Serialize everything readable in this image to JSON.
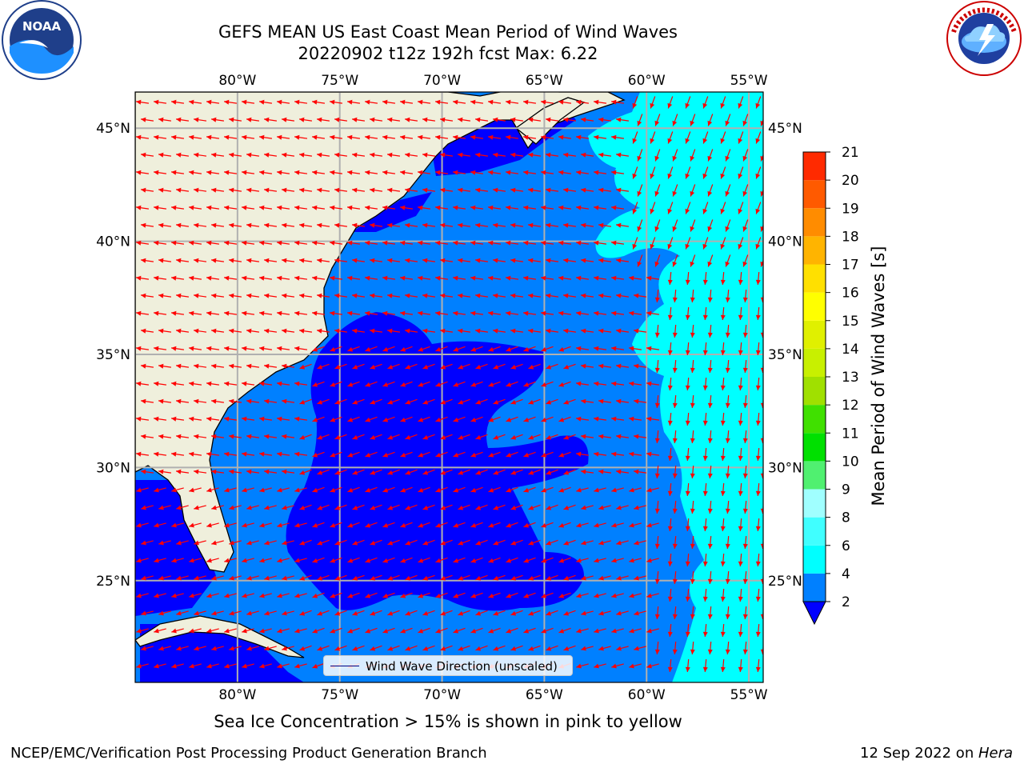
{
  "title": {
    "line1": "GEFS MEAN US East Coast Mean Period of Wind Waves",
    "line2": "20220902 t12z 192h fcst   Max: 6.22"
  },
  "logos": {
    "left": {
      "name": "noaa-logo",
      "text": "NOAA",
      "ring_text": "NATIONAL OCEANIC AND ATMOSPHERIC ADMINISTRATION · U.S. DEPARTMENT OF COMMERCE"
    },
    "right": {
      "name": "nws-logo",
      "ring_text": "NATIONAL WEATHER SERVICE"
    }
  },
  "map": {
    "lon_ticks": [
      "80°W",
      "75°W",
      "70°W",
      "65°W",
      "60°W",
      "55°W"
    ],
    "lat_ticks": [
      "45°N",
      "40°N",
      "35°N",
      "30°N",
      "25°N"
    ],
    "lon_values": [
      -80,
      -75,
      -70,
      -65,
      -60,
      -55
    ],
    "lat_values": [
      45,
      40,
      35,
      30,
      25
    ],
    "extent": {
      "lon_min": -85,
      "lon_max": -54.3,
      "lat_min": 20.5,
      "lat_max": 46.6
    },
    "grid": true,
    "colors": {
      "land": "#efefdc",
      "ocean_2_4": "#0080ff",
      "ocean_below_2": "#0000ff",
      "ocean_4_6": "#00ffff",
      "arrows": "#ff0000",
      "grid": "#b0b0b0",
      "coast": "#000000"
    }
  },
  "legend": {
    "label": "Wind Wave Direction (unscaled)"
  },
  "colorbar": {
    "label": "Mean Period of Wind Waves [s]",
    "ticks": [
      "2",
      "4",
      "6",
      "8",
      "9",
      "10",
      "11",
      "12",
      "13",
      "14",
      "15",
      "16",
      "17",
      "18",
      "19",
      "20",
      "21"
    ],
    "colors": [
      "#0080ff",
      "#00ffff",
      "#40ffff",
      "#a0ffff",
      "#50f070",
      "#00e000",
      "#40e000",
      "#a0e000",
      "#c8f000",
      "#e0f000",
      "#ffff00",
      "#ffe000",
      "#ffb400",
      "#ff8c00",
      "#ff5a00",
      "#ff2a00"
    ],
    "under_color": "#0000ff"
  },
  "caption": "Sea Ice Concentration > 15% is shown in pink to yellow",
  "footer": {
    "left": "NCEP/EMC/Verification Post Processing Product Generation Branch",
    "right_date": "12 Sep 2022 on ",
    "right_machine": "Hera"
  }
}
